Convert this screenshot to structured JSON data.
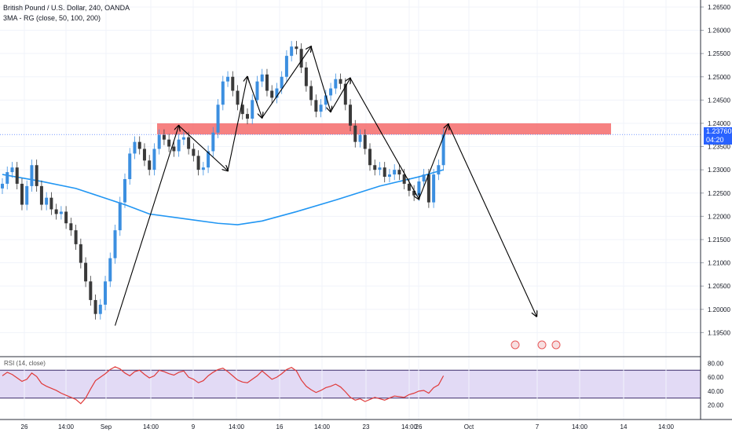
{
  "header": {
    "symbol_title": "British Pound / U.S. Dollar, 240, OANDA",
    "indicator_label": "3MA - RG (close, 50, 100, 200)"
  },
  "price_tags": {
    "last_price": "1.23760",
    "countdown": "04:20"
  },
  "colors": {
    "up_candle": "#3c8fe0",
    "down_candle": "#3a3a3a",
    "ma_line": "#2196f3",
    "resistance_zone": "#f56b6b",
    "rsi_line": "#e03a3a",
    "rsi_band": "#d8cdf2",
    "tag_bg": "#2962ff",
    "arrows": "#000000"
  },
  "chart_data": {
    "type": "candlestick",
    "price_axis": {
      "range": [
        1.1905,
        1.2655
      ],
      "ticks": [
        "1.26500",
        "1.26000",
        "1.25500",
        "1.25000",
        "1.24500",
        "1.24000",
        "1.23500",
        "1.23000",
        "1.22500",
        "1.22000",
        "1.21500",
        "1.21000",
        "1.20500",
        "1.20000",
        "1.19500"
      ]
    },
    "time_axis": {
      "ticks": [
        "26",
        "14:00",
        "Sep",
        "14:00",
        "9",
        "14:00",
        "16",
        "14:00",
        "23",
        "14:00",
        "26",
        "Oct",
        "7",
        "14:00",
        "14",
        "14:00"
      ]
    },
    "price_path": [
      1.227,
      1.2295,
      1.2305,
      1.227,
      1.2225,
      1.2265,
      1.231,
      1.2265,
      1.2225,
      1.224,
      1.2215,
      1.2205,
      1.221,
      1.2185,
      1.217,
      1.214,
      1.21,
      1.206,
      1.202,
      1.199,
      1.201,
      1.206,
      1.211,
      1.217,
      1.223,
      1.228,
      1.2335,
      1.236,
      1.2345,
      1.232,
      1.23,
      1.2345,
      1.2375,
      1.2365,
      1.235,
      1.234,
      1.2365,
      1.237,
      1.2345,
      1.233,
      1.23,
      1.2305,
      1.234,
      1.238,
      1.244,
      1.249,
      1.25,
      1.247,
      1.244,
      1.242,
      1.241,
      1.245,
      1.249,
      1.2505,
      1.247,
      1.2455,
      1.2475,
      1.25,
      1.2545,
      1.2565,
      1.256,
      1.252,
      1.248,
      1.245,
      1.2425,
      1.244,
      1.246,
      1.2475,
      1.2495,
      1.2485,
      1.244,
      1.2395,
      1.236,
      1.2375,
      1.2345,
      1.231,
      1.23,
      1.2305,
      1.2285,
      1.229,
      1.23,
      1.229,
      1.227,
      1.2255,
      1.2245,
      1.2275,
      1.229,
      1.223,
      1.229,
      1.231,
      1.2376
    ],
    "moving_average": {
      "name": "MA 200",
      "points": [
        [
          0,
          1.229
        ],
        [
          8,
          1.2275
        ],
        [
          15,
          1.226
        ],
        [
          25,
          1.2225
        ],
        [
          30,
          1.2205
        ],
        [
          37,
          1.2195
        ],
        [
          44,
          1.2185
        ],
        [
          48,
          1.2182
        ],
        [
          53,
          1.219
        ],
        [
          60,
          1.221
        ],
        [
          68,
          1.2235
        ],
        [
          77,
          1.2265
        ],
        [
          85,
          1.2285
        ],
        [
          90,
          1.23
        ]
      ]
    },
    "resistance_zone": [
      1.2376,
      1.24
    ],
    "pattern_arrows": [
      [
        23,
        1.1965
      ],
      [
        36,
        1.2395
      ],
      [
        46,
        1.2298
      ],
      [
        50,
        1.25
      ],
      [
        53,
        1.2412
      ],
      [
        63,
        1.2565
      ],
      [
        67,
        1.2425
      ],
      [
        71,
        1.2497
      ],
      [
        85,
        1.2237
      ],
      [
        91,
        1.2398
      ],
      [
        109,
        1.1985
      ]
    ],
    "rsi": {
      "label": "RSI (14, close)",
      "range": [
        15,
        85
      ],
      "band": [
        30,
        70
      ],
      "ticks": [
        "80.00",
        "60.00",
        "40.00",
        "20.00"
      ],
      "values": [
        62,
        67,
        64,
        59,
        54,
        57,
        66,
        61,
        51,
        47,
        44,
        41,
        37,
        34,
        31,
        28,
        22,
        30,
        43,
        55,
        60,
        65,
        71,
        75,
        72,
        66,
        62,
        68,
        70,
        64,
        59,
        62,
        70,
        68,
        65,
        63,
        67,
        69,
        60,
        57,
        52,
        55,
        62,
        67,
        71,
        73,
        68,
        62,
        56,
        53,
        52,
        57,
        62,
        69,
        63,
        57,
        60,
        65,
        71,
        74,
        69,
        56,
        47,
        42,
        38,
        41,
        45,
        47,
        50,
        46,
        39,
        31,
        27,
        29,
        25,
        28,
        31,
        29,
        27,
        30,
        33,
        32,
        31,
        35,
        37,
        40,
        41,
        37,
        45,
        49,
        62
      ]
    }
  }
}
